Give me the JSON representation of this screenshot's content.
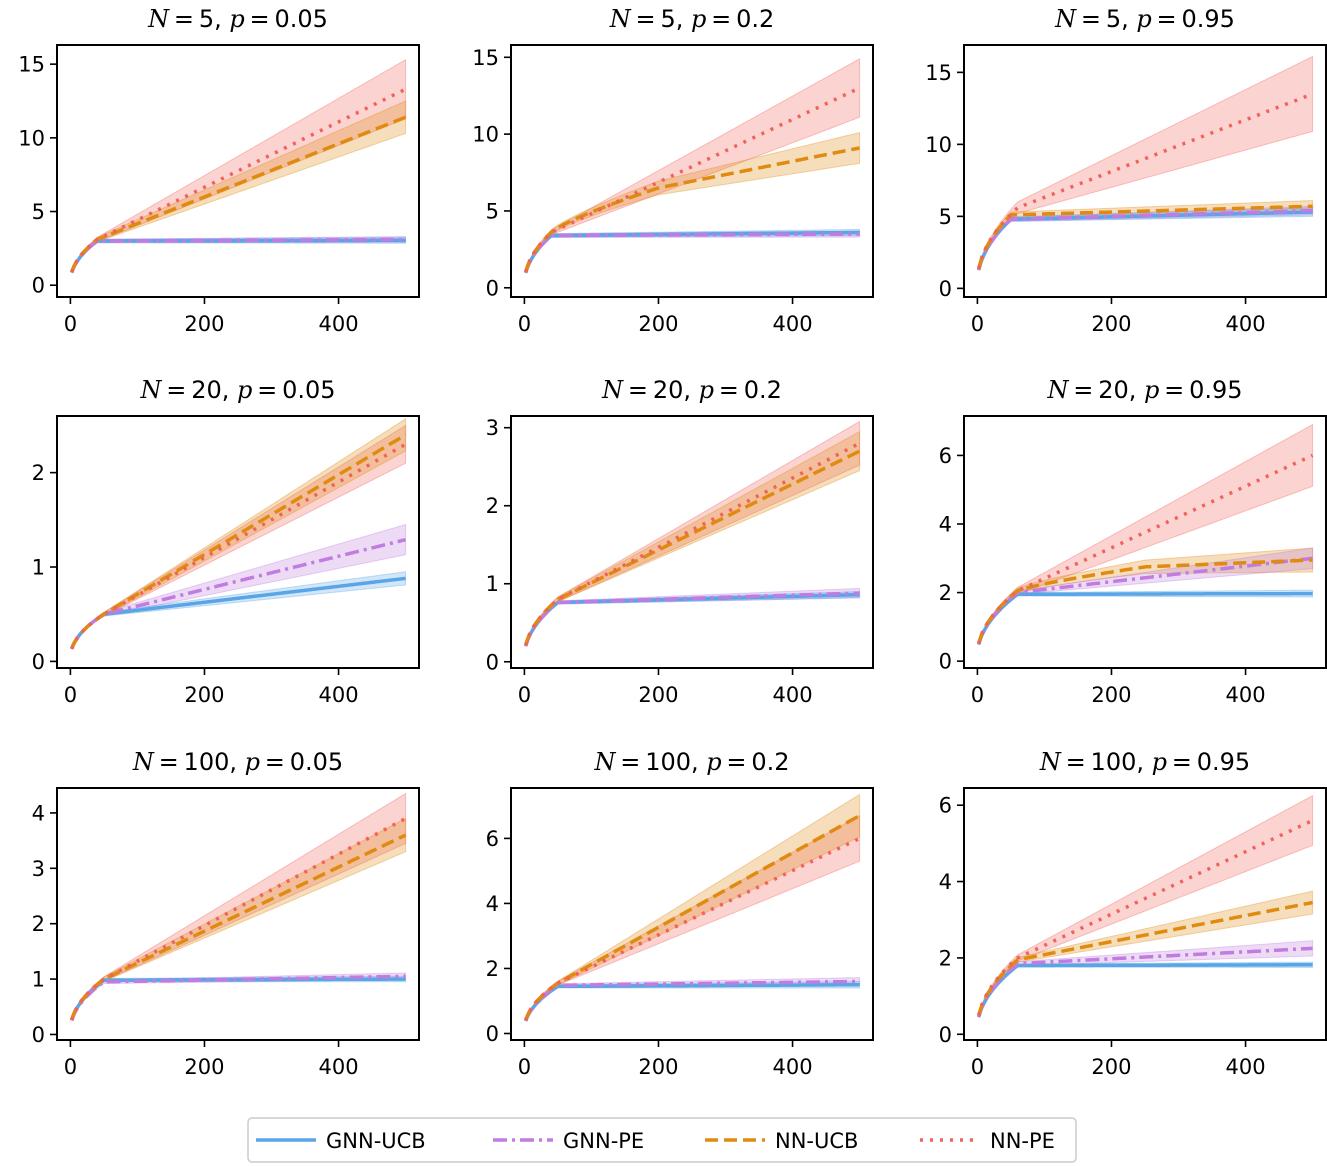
{
  "chart_data": {
    "type": "line",
    "colors": {
      "GNN-UCB": "#5aa5e6",
      "GNN-PE": "#c07ce0",
      "NN-UCB": "#e08a0f",
      "NN-PE": "#f0625a"
    },
    "legend": [
      "GNN-UCB",
      "GNN-PE",
      "NN-UCB",
      "NN-PE"
    ],
    "legend_position": "bottom-center",
    "panels": [
      {
        "title": {
          "n_sym": "N",
          "n_val": "5",
          "p_sym": "p",
          "p_val": "0.05"
        },
        "xlim": [
          -20,
          520
        ],
        "ylim": [
          -0.8,
          16.3
        ],
        "xticks": [
          "0",
          "200",
          "400"
        ],
        "yticks": [
          "0",
          "5",
          "10",
          "15"
        ],
        "series": [
          {
            "name": "GNN-UCB",
            "knee": 40,
            "kneeVal": 3.0,
            "end": 3.05,
            "bandEnd": 0.2,
            "bandKnee": 0.12
          },
          {
            "name": "GNN-PE",
            "knee": 40,
            "kneeVal": 3.0,
            "end": 3.1,
            "bandEnd": 0.2,
            "bandKnee": 0.12
          },
          {
            "name": "NN-UCB",
            "knee": 40,
            "kneeVal": 3.1,
            "end": 11.4,
            "bandEnd": 1.1,
            "bandKnee": 0.15
          },
          {
            "name": "NN-PE",
            "knee": 40,
            "kneeVal": 3.1,
            "end": 13.3,
            "bandEnd": 2.0,
            "bandKnee": 0.15
          }
        ]
      },
      {
        "title": {
          "n_sym": "N",
          "n_val": "5",
          "p_sym": "p",
          "p_val": "0.2"
        },
        "xlim": [
          -20,
          520
        ],
        "ylim": [
          -0.6,
          15.8
        ],
        "xticks": [
          "0",
          "200",
          "400"
        ],
        "yticks": [
          "0",
          "5",
          "10",
          "15"
        ],
        "series": [
          {
            "name": "GNN-UCB",
            "knee": 40,
            "kneeVal": 3.4,
            "end": 3.6,
            "bandEnd": 0.2,
            "bandKnee": 0.12
          },
          {
            "name": "GNN-PE",
            "knee": 40,
            "kneeVal": 3.4,
            "end": 3.5,
            "bandEnd": 0.2,
            "bandKnee": 0.12
          },
          {
            "name": "NN-UCB",
            "knee": 40,
            "kneeVal": 3.6,
            "mid": [
              200,
              6.5
            ],
            "end": 9.1,
            "bandEnd": 1.0,
            "bandKnee": 0.15
          },
          {
            "name": "NN-PE",
            "knee": 40,
            "kneeVal": 3.6,
            "end": 13.0,
            "bandEnd": 1.9,
            "bandKnee": 0.15
          }
        ]
      },
      {
        "title": {
          "n_sym": "N",
          "n_val": "5",
          "p_sym": "p",
          "p_val": "0.95"
        },
        "xlim": [
          -20,
          520
        ],
        "ylim": [
          -0.6,
          16.9
        ],
        "xticks": [
          "0",
          "200",
          "400"
        ],
        "yticks": [
          "0",
          "5",
          "10",
          "15"
        ],
        "series": [
          {
            "name": "GNN-UCB",
            "knee": 50,
            "kneeVal": 4.8,
            "end": 5.3,
            "bandEnd": 0.3,
            "bandKnee": 0.15
          },
          {
            "name": "GNN-PE",
            "knee": 50,
            "kneeVal": 4.8,
            "end": 5.4,
            "bandEnd": 0.3,
            "bandKnee": 0.15
          },
          {
            "name": "NN-UCB",
            "knee": 50,
            "kneeVal": 5.1,
            "end": 5.7,
            "bandEnd": 0.4,
            "bandKnee": 0.2
          },
          {
            "name": "NN-PE",
            "knee": 60,
            "kneeVal": 5.6,
            "end": 13.5,
            "bandEnd": 2.6,
            "bandKnee": 0.4
          }
        ]
      },
      {
        "title": {
          "n_sym": "N",
          "n_val": "20",
          "p_sym": "p",
          "p_val": "0.05"
        },
        "xlim": [
          -20,
          520
        ],
        "ylim": [
          -0.07,
          2.6
        ],
        "xticks": [
          "0",
          "200",
          "400"
        ],
        "yticks": [
          "0",
          "1",
          "2"
        ],
        "series": [
          {
            "name": "GNN-UCB",
            "knee": 50,
            "kneeVal": 0.5,
            "end": 0.88,
            "bandEnd": 0.07,
            "bandKnee": 0.02
          },
          {
            "name": "GNN-PE",
            "knee": 50,
            "kneeVal": 0.5,
            "end": 1.29,
            "bandEnd": 0.16,
            "bandKnee": 0.02
          },
          {
            "name": "NN-UCB",
            "knee": 50,
            "kneeVal": 0.5,
            "end": 2.4,
            "bandEnd": 0.17,
            "bandKnee": 0.02
          },
          {
            "name": "NN-PE",
            "knee": 50,
            "kneeVal": 0.5,
            "end": 2.3,
            "bandEnd": 0.2,
            "bandKnee": 0.02
          }
        ]
      },
      {
        "title": {
          "n_sym": "N",
          "n_val": "20",
          "p_sym": "p",
          "p_val": "0.2"
        },
        "xlim": [
          -20,
          520
        ],
        "ylim": [
          -0.08,
          3.15
        ],
        "xticks": [
          "0",
          "200",
          "400"
        ],
        "yticks": [
          "0",
          "1",
          "2",
          "3"
        ],
        "series": [
          {
            "name": "GNN-UCB",
            "knee": 50,
            "kneeVal": 0.76,
            "end": 0.86,
            "bandEnd": 0.04,
            "bandKnee": 0.02
          },
          {
            "name": "GNN-PE",
            "knee": 50,
            "kneeVal": 0.76,
            "end": 0.88,
            "bandEnd": 0.06,
            "bandKnee": 0.02
          },
          {
            "name": "NN-UCB",
            "knee": 50,
            "kneeVal": 0.8,
            "end": 2.7,
            "bandEnd": 0.25,
            "bandKnee": 0.03
          },
          {
            "name": "NN-PE",
            "knee": 50,
            "kneeVal": 0.8,
            "end": 2.8,
            "bandEnd": 0.28,
            "bandKnee": 0.03
          }
        ]
      },
      {
        "title": {
          "n_sym": "N",
          "n_val": "20",
          "p_sym": "p",
          "p_val": "0.95"
        },
        "xlim": [
          -20,
          520
        ],
        "ylim": [
          -0.2,
          7.15
        ],
        "xticks": [
          "0",
          "200",
          "400"
        ],
        "yticks": [
          "0",
          "2",
          "4",
          "6"
        ],
        "series": [
          {
            "name": "GNN-UCB",
            "knee": 60,
            "kneeVal": 1.95,
            "end": 1.97,
            "bandEnd": 0.1,
            "bandKnee": 0.05
          },
          {
            "name": "GNN-PE",
            "knee": 60,
            "kneeVal": 2.0,
            "end": 3.0,
            "bandEnd": 0.3,
            "bandKnee": 0.05
          },
          {
            "name": "NN-UCB",
            "knee": 60,
            "kneeVal": 2.05,
            "mid": [
              250,
              2.75
            ],
            "end": 2.95,
            "bandEnd": 0.35,
            "bandKnee": 0.08
          },
          {
            "name": "NN-PE",
            "knee": 60,
            "kneeVal": 2.05,
            "end": 6.0,
            "bandEnd": 0.9,
            "bandKnee": 0.1
          }
        ]
      },
      {
        "title": {
          "n_sym": "N",
          "n_val": "100",
          "p_sym": "p",
          "p_val": "0.05"
        },
        "xlim": [
          -20,
          520
        ],
        "ylim": [
          -0.1,
          4.45
        ],
        "xticks": [
          "0",
          "200",
          "400"
        ],
        "yticks": [
          "0",
          "1",
          "2",
          "3",
          "4"
        ],
        "series": [
          {
            "name": "GNN-UCB",
            "knee": 50,
            "kneeVal": 0.98,
            "end": 1.0,
            "bandEnd": 0.05,
            "bandKnee": 0.03
          },
          {
            "name": "GNN-PE",
            "knee": 50,
            "kneeVal": 0.95,
            "end": 1.05,
            "bandEnd": 0.06,
            "bandKnee": 0.03
          },
          {
            "name": "NN-UCB",
            "knee": 50,
            "kneeVal": 1.0,
            "end": 3.6,
            "bandEnd": 0.3,
            "bandKnee": 0.04
          },
          {
            "name": "NN-PE",
            "knee": 50,
            "kneeVal": 1.0,
            "end": 3.9,
            "bandEnd": 0.45,
            "bandKnee": 0.04
          }
        ]
      },
      {
        "title": {
          "n_sym": "N",
          "n_val": "100",
          "p_sym": "p",
          "p_val": "0.2"
        },
        "xlim": [
          -20,
          520
        ],
        "ylim": [
          -0.2,
          7.55
        ],
        "xticks": [
          "0",
          "200",
          "400"
        ],
        "yticks": [
          "0",
          "2",
          "4",
          "6"
        ],
        "series": [
          {
            "name": "GNN-UCB",
            "knee": 50,
            "kneeVal": 1.45,
            "end": 1.5,
            "bandEnd": 0.1,
            "bandKnee": 0.05
          },
          {
            "name": "GNN-PE",
            "knee": 50,
            "kneeVal": 1.48,
            "end": 1.6,
            "bandEnd": 0.12,
            "bandKnee": 0.05
          },
          {
            "name": "NN-UCB",
            "knee": 50,
            "kneeVal": 1.55,
            "end": 6.7,
            "bandEnd": 0.65,
            "bandKnee": 0.06
          },
          {
            "name": "NN-PE",
            "knee": 50,
            "kneeVal": 1.55,
            "end": 6.0,
            "bandEnd": 0.7,
            "bandKnee": 0.06
          }
        ]
      },
      {
        "title": {
          "n_sym": "N",
          "n_val": "100",
          "p_sym": "p",
          "p_val": "0.95"
        },
        "xlim": [
          -20,
          520
        ],
        "ylim": [
          -0.15,
          6.45
        ],
        "xticks": [
          "0",
          "200",
          "400"
        ],
        "yticks": [
          "0",
          "2",
          "4",
          "6"
        ],
        "series": [
          {
            "name": "GNN-UCB",
            "knee": 60,
            "kneeVal": 1.8,
            "end": 1.82,
            "bandEnd": 0.07,
            "bandKnee": 0.04
          },
          {
            "name": "GNN-PE",
            "knee": 60,
            "kneeVal": 1.85,
            "end": 2.25,
            "bandEnd": 0.2,
            "bandKnee": 0.05
          },
          {
            "name": "NN-UCB",
            "knee": 60,
            "kneeVal": 1.95,
            "end": 3.45,
            "bandEnd": 0.3,
            "bandKnee": 0.06
          },
          {
            "name": "NN-PE",
            "knee": 60,
            "kneeVal": 2.0,
            "end": 5.6,
            "bandEnd": 0.65,
            "bandKnee": 0.08
          }
        ]
      }
    ]
  }
}
